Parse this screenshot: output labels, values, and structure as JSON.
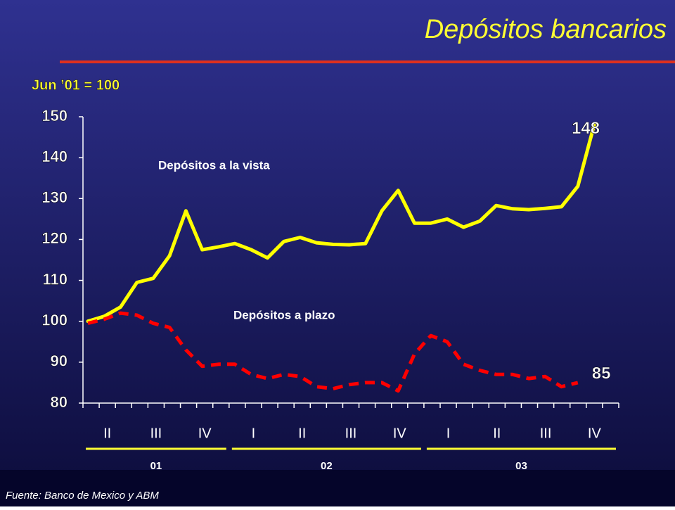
{
  "chart_data": {
    "type": "line",
    "title": "Depósitos bancarios",
    "subtitle": "Jun ’01 = 100",
    "categories": [
      null,
      null,
      null,
      null,
      null,
      null,
      null,
      null,
      null,
      null,
      null,
      null,
      null,
      null,
      null,
      null,
      null,
      null,
      null,
      null,
      null,
      null,
      null,
      null,
      null,
      null,
      null,
      null,
      null,
      null,
      null,
      null
    ],
    "series": [
      {
        "name": "Depósitos a la vista",
        "color": "#ffff00",
        "dashed": false,
        "values": [
          100,
          101.2,
          103.5,
          109.5,
          110.5,
          116,
          127,
          117.5,
          118.2,
          119,
          117.5,
          115.5,
          119.5,
          120.5,
          119.2,
          118.8,
          118.7,
          119,
          127,
          132,
          124,
          124,
          125,
          123,
          124.5,
          128.3,
          127.5,
          127.3,
          127.6,
          128,
          133,
          148
        ]
      },
      {
        "name": "Depósitos a plazo",
        "color": "#ff0000",
        "dashed": true,
        "values": [
          99.5,
          100.5,
          102,
          101.5,
          99.5,
          98.5,
          93,
          89,
          89.5,
          89.5,
          87,
          86,
          87,
          86.5,
          84,
          83.5,
          84.5,
          85,
          85,
          83,
          92,
          96.5,
          95,
          89.5,
          88,
          87,
          87,
          86,
          86.5,
          84,
          85,
          null
        ]
      }
    ],
    "ylim": [
      80,
      150
    ],
    "yticks": [
      80,
      90,
      100,
      110,
      120,
      130,
      140,
      150
    ],
    "quarters": [
      "II",
      "III",
      "IV",
      "I",
      "II",
      "III",
      "IV",
      "I",
      "II",
      "III",
      "IV"
    ],
    "years": [
      "01",
      "02",
      "03"
    ],
    "source": "Fuente: Banco de Mexico y ABM"
  }
}
